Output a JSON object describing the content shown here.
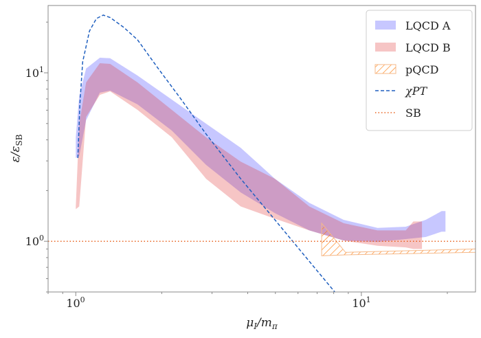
{
  "chart_data": {
    "type": "area",
    "xscale": "log",
    "yscale": "log",
    "xlim": [
      0.8,
      25.1
    ],
    "ylim": [
      0.5,
      25.1
    ],
    "xlabel": {
      "base1": "μ",
      "sub1": "I",
      "mid": "/m",
      "sub2": "π"
    },
    "ylabel": {
      "base1": "ε/ε",
      "sub1": "SB"
    },
    "xticks": [
      {
        "value": 1,
        "base": "10",
        "exp": "0"
      },
      {
        "value": 10,
        "base": "10",
        "exp": "1"
      }
    ],
    "yticks": [
      {
        "value": 1,
        "base": "10",
        "exp": "0"
      },
      {
        "value": 10,
        "base": "10",
        "exp": "1"
      }
    ],
    "grid": false,
    "legend_position": "top-right",
    "series": [
      {
        "name": "LQCD A",
        "kind": "band",
        "color": "#0000ff",
        "opacity": 0.22,
        "x": [
          1.0,
          1.028,
          1.087,
          1.214,
          1.319,
          1.646,
          2.17,
          2.86,
          3.78,
          4.98,
          6.57,
          8.67,
          11.4,
          14.3,
          16.8,
          19.1,
          19.7
        ],
        "upper": [
          4.14,
          7.27,
          10.6,
          12.3,
          12.2,
          9.63,
          6.93,
          4.99,
          3.59,
          2.35,
          1.69,
          1.34,
          1.2,
          1.22,
          1.34,
          1.51,
          1.51
        ],
        "lower": [
          3.12,
          3.2,
          5.23,
          7.62,
          7.84,
          6.49,
          4.54,
          2.84,
          1.95,
          1.47,
          1.16,
          1.01,
          0.99,
          1.03,
          1.06,
          1.14,
          1.14
        ]
      },
      {
        "name": "LQCD B",
        "kind": "band",
        "color": "#e03030",
        "opacity": 0.28,
        "x": [
          1.0,
          1.028,
          1.087,
          1.214,
          1.319,
          1.646,
          2.17,
          2.86,
          3.78,
          4.98,
          6.57,
          8.67,
          11.4,
          14.3,
          15.2,
          16.3
        ],
        "upper": [
          1.61,
          4.99,
          8.77,
          11.4,
          11.3,
          8.77,
          6.02,
          4.14,
          2.97,
          2.35,
          1.61,
          1.28,
          1.16,
          1.16,
          1.31,
          1.31
        ],
        "lower": [
          1.55,
          1.61,
          5.47,
          7.4,
          7.76,
          6.02,
          4.14,
          2.35,
          1.61,
          1.36,
          1.16,
          1.01,
          0.94,
          0.92,
          0.9,
          0.9
        ]
      },
      {
        "name": "pQCD",
        "kind": "hatched-band",
        "color": "#ff7f0e",
        "x": [
          7.26,
          8.8,
          25.1
        ],
        "upper": [
          1.28,
          0.86,
          0.9
        ],
        "lower": [
          0.82,
          0.83,
          0.86
        ]
      },
      {
        "name": "χPT",
        "kind": "line",
        "style": "dashed",
        "color": "#1f5fbf",
        "x": [
          1.017,
          1.034,
          1.057,
          1.117,
          1.181,
          1.248,
          1.319,
          1.473,
          1.646,
          1.944,
          2.295,
          2.86,
          3.78,
          4.98,
          6.57,
          8.07
        ],
        "y": [
          3.12,
          6.6,
          11.6,
          17.7,
          21.0,
          22.0,
          21.3,
          18.6,
          15.7,
          10.6,
          7.27,
          4.33,
          2.35,
          1.34,
          0.76,
          0.5
        ]
      },
      {
        "name": "SB",
        "kind": "hline",
        "style": "dotted",
        "color": "#e8601c",
        "y": 1
      }
    ]
  }
}
